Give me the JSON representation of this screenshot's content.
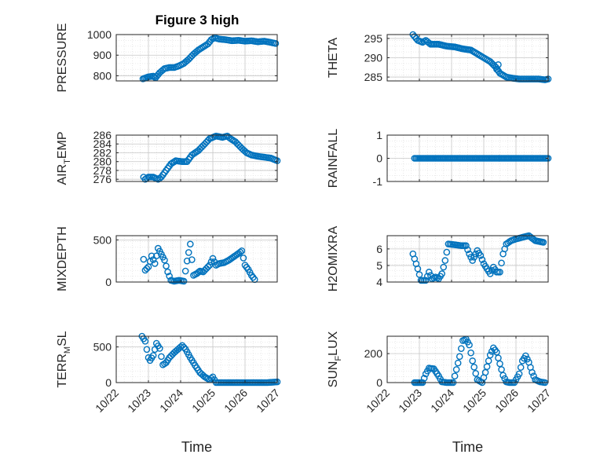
{
  "figure": {
    "title": "Figure 3 high"
  },
  "colors": {
    "marker": "#0072BD",
    "axis": "#262626",
    "grid": "#c8c8c8",
    "minor_grid": "#e4e4e4"
  },
  "chart_data": [
    {
      "type": "scatter",
      "title": "Figure 3 high",
      "ylabel": "PRESSURE",
      "xlabel": "",
      "ylim": [
        775,
        1000
      ],
      "yticks": [
        "800",
        "900",
        "1000"
      ],
      "yticks_vals": [
        800,
        900,
        1000
      ],
      "xlim": [
        0,
        5
      ],
      "xticks": [
        "",
        "",
        "",
        "",
        "",
        ""
      ],
      "grid": true,
      "segments": [
        [
          0.83,
          785
        ],
        [
          1.0,
          795
        ],
        [
          1.15,
          798
        ],
        [
          1.22,
          790
        ],
        [
          1.35,
          815
        ],
        [
          1.5,
          835
        ],
        [
          1.65,
          840
        ],
        [
          1.8,
          840
        ],
        [
          1.95,
          848
        ],
        [
          2.1,
          860
        ],
        [
          2.25,
          880
        ],
        [
          2.4,
          905
        ],
        [
          2.55,
          925
        ],
        [
          2.7,
          940
        ],
        [
          2.85,
          955
        ],
        [
          2.95,
          975
        ],
        [
          3.05,
          985
        ],
        [
          3.2,
          978
        ],
        [
          3.4,
          975
        ],
        [
          3.6,
          970
        ],
        [
          3.8,
          972
        ],
        [
          4.0,
          968
        ],
        [
          4.2,
          970
        ],
        [
          4.4,
          965
        ],
        [
          4.6,
          968
        ],
        [
          4.8,
          962
        ],
        [
          4.95,
          957
        ]
      ]
    },
    {
      "type": "scatter",
      "ylabel": "THETA",
      "xlabel": "",
      "ylim": [
        284,
        296
      ],
      "yticks": [
        "285",
        "290",
        "295"
      ],
      "yticks_vals": [
        285,
        290,
        295
      ],
      "xlim": [
        0,
        5
      ],
      "xticks": [
        "",
        "",
        "",
        "",
        "",
        ""
      ],
      "grid": true,
      "segments": [
        [
          0.8,
          296
        ],
        [
          0.95,
          294.5
        ],
        [
          1.1,
          294
        ],
        [
          1.2,
          294.5
        ],
        [
          1.35,
          293.5
        ],
        [
          1.6,
          293.5
        ],
        [
          1.85,
          293
        ],
        [
          2.1,
          292.8
        ],
        [
          2.35,
          292.3
        ],
        [
          2.6,
          292
        ],
        [
          2.8,
          291
        ],
        [
          3.0,
          290
        ],
        [
          3.2,
          289
        ],
        [
          3.38,
          287.5
        ],
        [
          3.5,
          286
        ],
        [
          3.7,
          285
        ],
        [
          3.9,
          284.7
        ],
        [
          4.1,
          284.5
        ],
        [
          4.3,
          284.5
        ],
        [
          4.5,
          284.5
        ],
        [
          4.7,
          284.5
        ],
        [
          4.9,
          284.3
        ],
        [
          5.0,
          284.5
        ]
      ],
      "extras": [
        [
          3.4,
          287
        ],
        [
          3.45,
          288.2
        ]
      ]
    },
    {
      "type": "scatter",
      "ylabel": "AIR_TEMP",
      "xlabel": "",
      "ylim": [
        275.5,
        286
      ],
      "yticks": [
        "276",
        "278",
        "280",
        "282",
        "284",
        "286"
      ],
      "yticks_vals": [
        276,
        278,
        280,
        282,
        284,
        286
      ],
      "xlim": [
        0,
        5
      ],
      "xticks": [
        "",
        "",
        "",
        "",
        "",
        ""
      ],
      "grid": true,
      "segments": [
        [
          0.85,
          276.5
        ],
        [
          0.9,
          276
        ],
        [
          1.0,
          276.5
        ],
        [
          1.15,
          276.5
        ],
        [
          1.3,
          276
        ],
        [
          1.4,
          276.5
        ],
        [
          1.55,
          278
        ],
        [
          1.7,
          279.5
        ],
        [
          1.85,
          280.2
        ],
        [
          2.05,
          280
        ],
        [
          2.2,
          280
        ],
        [
          2.35,
          281.5
        ],
        [
          2.55,
          282.5
        ],
        [
          2.75,
          284
        ],
        [
          2.9,
          285.2
        ],
        [
          3.1,
          285.8
        ],
        [
          3.3,
          285.5
        ],
        [
          3.45,
          285.8
        ],
        [
          3.55,
          285.2
        ],
        [
          3.7,
          284.5
        ],
        [
          3.9,
          283
        ],
        [
          4.05,
          282
        ],
        [
          4.2,
          281.5
        ],
        [
          4.4,
          281.2
        ],
        [
          4.6,
          281
        ],
        [
          4.8,
          280.8
        ],
        [
          5.0,
          280.2
        ]
      ]
    },
    {
      "type": "scatter",
      "ylabel": "RAINFALL",
      "xlabel": "",
      "ylim": [
        -1,
        1
      ],
      "yticks": [
        "-1",
        "0",
        "1"
      ],
      "yticks_vals": [
        -1,
        0,
        1
      ],
      "xlim": [
        0,
        5
      ],
      "xticks": [
        "",
        "",
        "",
        "",
        "",
        ""
      ],
      "grid": true,
      "segments": [
        [
          0.85,
          0
        ],
        [
          1.5,
          0
        ],
        [
          2.0,
          0
        ],
        [
          2.5,
          0
        ],
        [
          3.0,
          0
        ],
        [
          3.5,
          0
        ],
        [
          4.0,
          0
        ],
        [
          4.5,
          0
        ],
        [
          5.0,
          0
        ]
      ]
    },
    {
      "type": "scatter",
      "ylabel": "MIXDEPTH",
      "xlabel": "",
      "ylim": [
        0,
        550
      ],
      "yticks": [
        "0",
        "500"
      ],
      "yticks_vals": [
        0,
        500
      ],
      "xlim": [
        0,
        5
      ],
      "xticks": [
        "",
        "",
        "",
        "",
        "",
        ""
      ],
      "grid": true,
      "segments": [
        [
          0.85,
          270
        ],
        [
          0.9,
          140
        ],
        [
          1.0,
          180
        ],
        [
          1.1,
          310
        ],
        [
          1.2,
          220
        ],
        [
          1.3,
          400
        ],
        [
          1.4,
          330
        ],
        [
          1.5,
          260
        ],
        [
          1.6,
          120
        ],
        [
          1.7,
          20
        ],
        [
          1.8,
          10
        ],
        [
          1.95,
          20
        ],
        [
          2.1,
          10
        ],
        [
          2.2,
          250
        ],
        [
          2.3,
          450
        ],
        [
          2.4,
          80
        ],
        [
          2.5,
          100
        ],
        [
          2.6,
          130
        ],
        [
          2.7,
          120
        ],
        [
          2.8,
          160
        ],
        [
          2.9,
          200
        ],
        [
          3.0,
          280
        ],
        [
          3.1,
          200
        ],
        [
          3.2,
          220
        ],
        [
          3.35,
          230
        ],
        [
          3.5,
          260
        ],
        [
          3.65,
          300
        ],
        [
          3.8,
          340
        ],
        [
          3.9,
          370
        ],
        [
          4.0,
          200
        ],
        [
          4.1,
          150
        ],
        [
          4.2,
          80
        ],
        [
          4.3,
          30
        ]
      ]
    },
    {
      "type": "scatter",
      "ylabel": "H2OMIXRA",
      "xlabel": "",
      "ylim": [
        4,
        6.8
      ],
      "yticks": [
        "4",
        "5",
        "6"
      ],
      "yticks_vals": [
        4,
        5,
        6
      ],
      "xlim": [
        0,
        5
      ],
      "xticks": [
        "",
        "",
        "",
        "",
        "",
        ""
      ],
      "grid": true,
      "segments": [
        [
          0.8,
          5.7
        ],
        [
          0.95,
          4.8
        ],
        [
          1.05,
          4.1
        ],
        [
          1.2,
          4.1
        ],
        [
          1.3,
          4.6
        ],
        [
          1.4,
          4.2
        ],
        [
          1.5,
          4.3
        ],
        [
          1.6,
          4.2
        ],
        [
          1.7,
          4.5
        ],
        [
          1.8,
          5.3
        ],
        [
          1.9,
          6.3
        ],
        [
          2.1,
          6.25
        ],
        [
          2.3,
          6.2
        ],
        [
          2.45,
          6.2
        ],
        [
          2.55,
          5.7
        ],
        [
          2.65,
          5.3
        ],
        [
          2.8,
          5.9
        ],
        [
          2.9,
          5.6
        ],
        [
          3.0,
          5.1
        ],
        [
          3.1,
          4.8
        ],
        [
          3.2,
          4.5
        ],
        [
          3.3,
          4.9
        ],
        [
          3.4,
          4.6
        ],
        [
          3.5,
          4.6
        ],
        [
          3.6,
          5.7
        ],
        [
          3.7,
          6.3
        ],
        [
          3.85,
          6.5
        ],
        [
          4.0,
          6.6
        ],
        [
          4.2,
          6.7
        ],
        [
          4.4,
          6.8
        ],
        [
          4.6,
          6.5
        ],
        [
          4.85,
          6.4
        ]
      ]
    },
    {
      "type": "scatter",
      "ylabel": "TERR_MSL",
      "xlabel": "Time",
      "ylim": [
        0,
        650
      ],
      "yticks": [
        "0",
        "500"
      ],
      "yticks_vals": [
        0,
        500
      ],
      "xlim": [
        0,
        5
      ],
      "xticks": [
        "10/22",
        "10/23",
        "10/24",
        "10/25",
        "10/26",
        "10/27"
      ],
      "grid": true,
      "segments": [
        [
          0.8,
          650
        ],
        [
          0.9,
          580
        ],
        [
          1.0,
          350
        ],
        [
          1.05,
          310
        ],
        [
          1.15,
          380
        ],
        [
          1.25,
          550
        ],
        [
          1.35,
          480
        ],
        [
          1.45,
          250
        ],
        [
          1.55,
          280
        ],
        [
          1.65,
          350
        ],
        [
          1.8,
          420
        ],
        [
          1.95,
          480
        ],
        [
          2.05,
          520
        ],
        [
          2.15,
          470
        ],
        [
          2.3,
          350
        ],
        [
          2.45,
          240
        ],
        [
          2.6,
          140
        ],
        [
          2.75,
          80
        ],
        [
          2.9,
          40
        ],
        [
          3.0,
          80
        ],
        [
          3.1,
          0
        ],
        [
          3.3,
          0
        ],
        [
          3.5,
          0
        ],
        [
          3.7,
          0
        ],
        [
          3.9,
          0
        ],
        [
          4.1,
          0
        ],
        [
          4.3,
          0
        ],
        [
          4.5,
          0
        ],
        [
          4.7,
          0
        ],
        [
          4.85,
          5
        ],
        [
          5.0,
          10
        ]
      ]
    },
    {
      "type": "scatter",
      "ylabel": "SUN_FLUX",
      "xlabel": "Time",
      "ylim": [
        0,
        320
      ],
      "yticks": [
        "0",
        "200"
      ],
      "yticks_vals": [
        0,
        200
      ],
      "xlim": [
        0,
        5
      ],
      "xticks": [
        "10/22",
        "10/23",
        "10/24",
        "10/25",
        "10/26",
        "10/27"
      ],
      "grid": true,
      "segments": [
        [
          0.85,
          0
        ],
        [
          1.1,
          0
        ],
        [
          1.2,
          60
        ],
        [
          1.3,
          100
        ],
        [
          1.45,
          95
        ],
        [
          1.6,
          45
        ],
        [
          1.7,
          5
        ],
        [
          1.85,
          0
        ],
        [
          2.05,
          0
        ],
        [
          2.25,
          180
        ],
        [
          2.35,
          290
        ],
        [
          2.45,
          300
        ],
        [
          2.55,
          260
        ],
        [
          2.65,
          150
        ],
        [
          2.8,
          20
        ],
        [
          2.95,
          0
        ],
        [
          3.05,
          70
        ],
        [
          3.2,
          190
        ],
        [
          3.3,
          240
        ],
        [
          3.4,
          210
        ],
        [
          3.5,
          130
        ],
        [
          3.6,
          50
        ],
        [
          3.7,
          5
        ],
        [
          3.8,
          0
        ],
        [
          3.95,
          0
        ],
        [
          4.1,
          60
        ],
        [
          4.2,
          150
        ],
        [
          4.3,
          185
        ],
        [
          4.4,
          140
        ],
        [
          4.5,
          70
        ],
        [
          4.6,
          20
        ],
        [
          4.75,
          5
        ],
        [
          4.9,
          0
        ]
      ]
    }
  ],
  "labels": {
    "ylabels": [
      {
        "main": "PRESSURE",
        "sub": "",
        "rest": ""
      },
      {
        "main": "THETA",
        "sub": "",
        "rest": ""
      },
      {
        "main": "AIR",
        "sub": "T",
        "rest": "EMP"
      },
      {
        "main": "RAINFALL",
        "sub": "",
        "rest": ""
      },
      {
        "main": "MIXDEPTH",
        "sub": "",
        "rest": ""
      },
      {
        "main": "H2OMIXRA",
        "sub": "",
        "rest": ""
      },
      {
        "main": "TERR",
        "sub": "M",
        "rest": "SL"
      },
      {
        "main": "SUN",
        "sub": "F",
        "rest": "LUX"
      }
    ],
    "xlabel": "Time"
  }
}
